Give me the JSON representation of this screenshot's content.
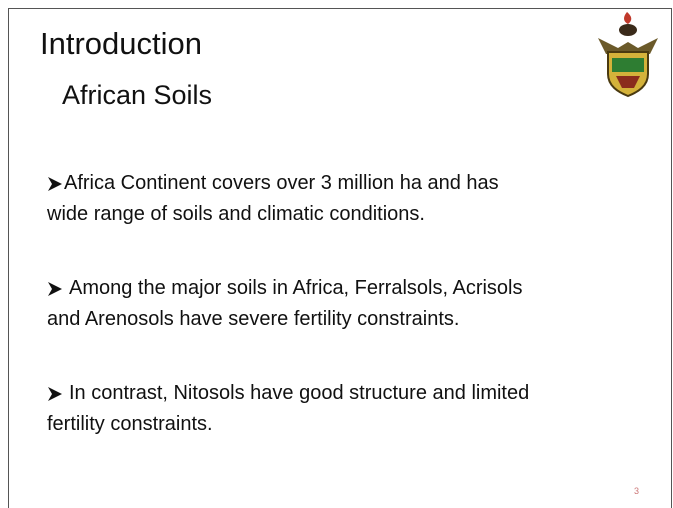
{
  "slide": {
    "title": "Introduction",
    "subtitle": "African Soils",
    "bullets": [
      [
        "Africa Continent covers over 3 million ha and has",
        "wide range of soils and climatic conditions."
      ],
      [
        "Among the major soils in Africa, Ferralsols, Acrisols",
        "and Arenosols have severe fertility constraints."
      ],
      [
        "In contrast, Nitosols have good structure and limited",
        "fertility constraints."
      ]
    ],
    "page_number": "3"
  }
}
